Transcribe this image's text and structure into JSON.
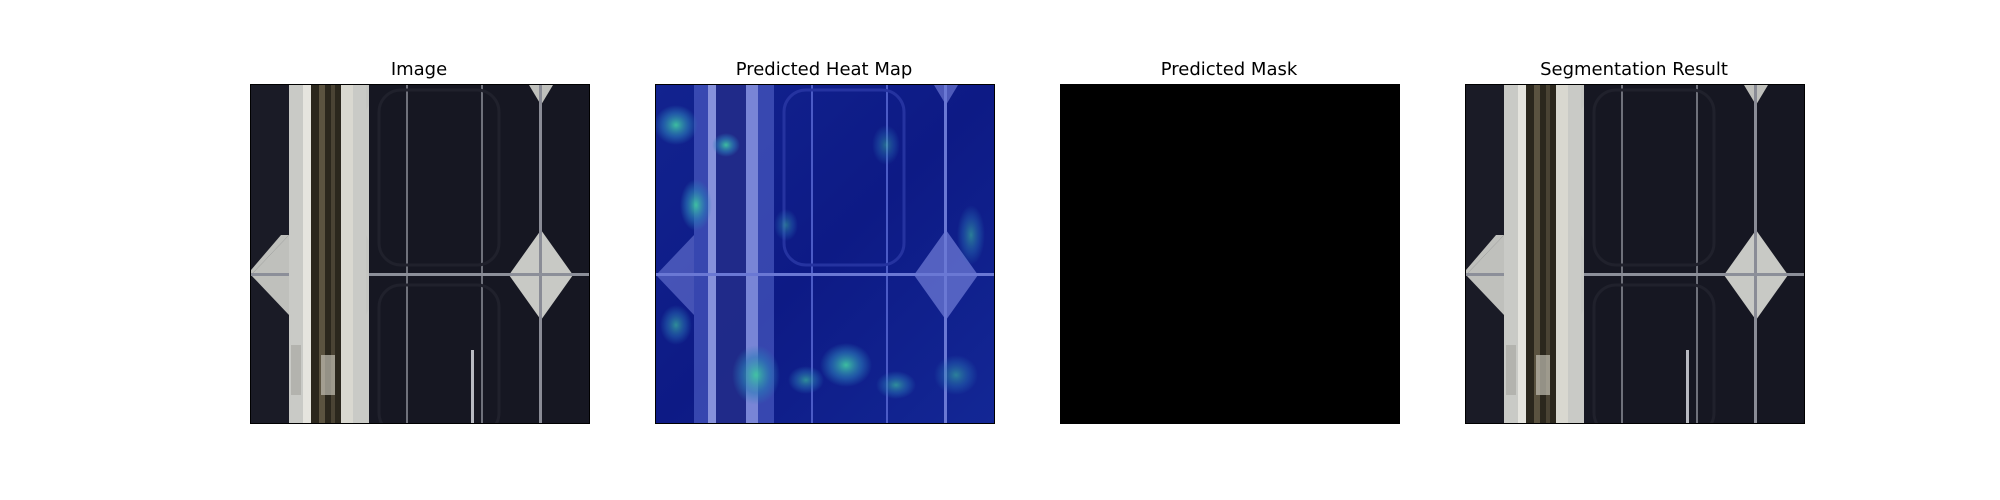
{
  "panels": [
    {
      "title": "Image",
      "content": "solar-cell-photo"
    },
    {
      "title": "Predicted Heat Map",
      "content": "heatmap-overlay"
    },
    {
      "title": "Predicted Mask",
      "content": "black-mask"
    },
    {
      "title": "Segmentation Result",
      "content": "solar-cell-photo"
    }
  ],
  "colors": {
    "background": "#ffffff",
    "cell_dark": "#15161f",
    "busbar_light": "#cfd0cc",
    "busbar_dark": "#2a261c",
    "finger": "#8c8f99",
    "mask": "#000000",
    "heat_low": "#0d1a85",
    "heat_mid": "#2a7ab8",
    "heat_high": "#3fc6a0"
  }
}
